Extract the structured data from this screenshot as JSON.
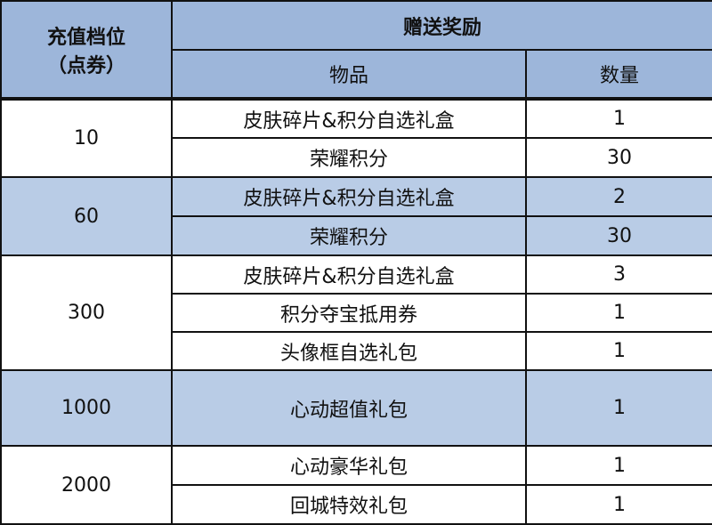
{
  "header": {
    "tier": "充值档位",
    "tier_unit": "（点券）",
    "reward": "赠送奖励",
    "item": "物品",
    "qty": "数量"
  },
  "colors": {
    "header_bg": "#9db6da",
    "alt_bg": "#b9cce6"
  },
  "groups": [
    {
      "tier": "10",
      "items": [
        {
          "name": "皮肤碎片&积分自选礼盒",
          "qty": "1"
        },
        {
          "name": "荣耀积分",
          "qty": "30"
        }
      ]
    },
    {
      "tier": "60",
      "items": [
        {
          "name": "皮肤碎片&积分自选礼盒",
          "qty": "2"
        },
        {
          "name": "荣耀积分",
          "qty": "30"
        }
      ]
    },
    {
      "tier": "300",
      "items": [
        {
          "name": "皮肤碎片&积分自选礼盒",
          "qty": "3"
        },
        {
          "name": "积分夺宝抵用券",
          "qty": "1"
        },
        {
          "name": "头像框自选礼包",
          "qty": "1"
        }
      ]
    },
    {
      "tier": "1000",
      "items": [
        {
          "name": "心动超值礼包",
          "qty": "1"
        }
      ]
    },
    {
      "tier": "2000",
      "items": [
        {
          "name": "心动豪华礼包",
          "qty": "1"
        },
        {
          "name": "回城特效礼包",
          "qty": "1"
        }
      ]
    }
  ]
}
